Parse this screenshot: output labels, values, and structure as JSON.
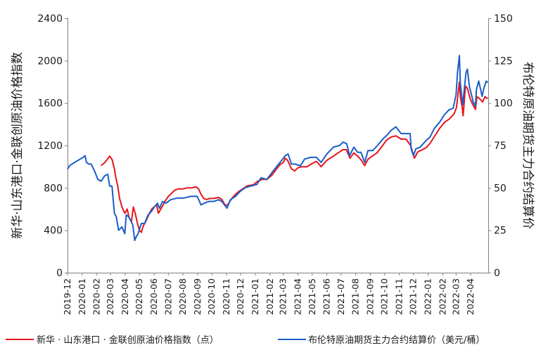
{
  "chart_data": {
    "type": "line",
    "left_axis": {
      "label": "新华·山东港口·金联创原油价格指数",
      "ylim": [
        0,
        2400
      ],
      "ticks": [
        "0",
        "400",
        "800",
        "1200",
        "1600",
        "2000",
        "2400"
      ]
    },
    "right_axis": {
      "label": "布伦特原油期货主力合约结算价",
      "ylim": [
        0,
        150
      ],
      "ticks": [
        "0",
        "25",
        "50",
        "75",
        "100",
        "125",
        "150"
      ]
    },
    "x_ticks": [
      "2019-12",
      "2020-01",
      "2020-02",
      "2020-03",
      "2020-04",
      "2020-05",
      "2020-06",
      "2020-07",
      "2020-08",
      "2020-09",
      "2020-10",
      "2020-11",
      "2020-12",
      "2021-01",
      "2021-02",
      "2021-03",
      "2021-04",
      "2021-05",
      "2021-06",
      "2021-07",
      "2021-08",
      "2021-09",
      "2021-10",
      "2021-11",
      "2021-12",
      "2022-01",
      "2022-02",
      "2022-03",
      "2022-04"
    ],
    "x_range": [
      "2019-12-01",
      "2022-05-08"
    ],
    "legend_position": "bottom",
    "grid": false,
    "series": [
      {
        "name": "新华 · 山东港口 · 金联创原油价格指数（点）",
        "axis": "left",
        "color": "#e8141c",
        "points": [
          [
            "2020-02-10",
            1010
          ],
          [
            "2020-02-18",
            1040
          ],
          [
            "2020-02-25",
            1080
          ],
          [
            "2020-02-28",
            1100
          ],
          [
            "2020-03-04",
            1070
          ],
          [
            "2020-03-09",
            980
          ],
          [
            "2020-03-12",
            900
          ],
          [
            "2020-03-16",
            820
          ],
          [
            "2020-03-20",
            700
          ],
          [
            "2020-03-25",
            620
          ],
          [
            "2020-03-31",
            560
          ],
          [
            "2020-04-05",
            600
          ],
          [
            "2020-04-09",
            520
          ],
          [
            "2020-04-14",
            480
          ],
          [
            "2020-04-18",
            620
          ],
          [
            "2020-04-22",
            560
          ],
          [
            "2020-04-27",
            460
          ],
          [
            "2020-05-01",
            400
          ],
          [
            "2020-05-05",
            380
          ],
          [
            "2020-05-09",
            440
          ],
          [
            "2020-05-14",
            480
          ],
          [
            "2020-05-18",
            520
          ],
          [
            "2020-05-22",
            560
          ],
          [
            "2020-05-27",
            600
          ],
          [
            "2020-06-01",
            620
          ],
          [
            "2020-06-06",
            640
          ],
          [
            "2020-06-10",
            560
          ],
          [
            "2020-06-15",
            600
          ],
          [
            "2020-06-20",
            640
          ],
          [
            "2020-06-25",
            680
          ],
          [
            "2020-07-01",
            720
          ],
          [
            "2020-07-08",
            750
          ],
          [
            "2020-07-15",
            780
          ],
          [
            "2020-07-22",
            790
          ],
          [
            "2020-08-01",
            790
          ],
          [
            "2020-08-10",
            800
          ],
          [
            "2020-08-20",
            800
          ],
          [
            "2020-08-28",
            810
          ],
          [
            "2020-09-03",
            790
          ],
          [
            "2020-09-08",
            740
          ],
          [
            "2020-09-14",
            700
          ],
          [
            "2020-09-20",
            690
          ],
          [
            "2020-09-26",
            700
          ],
          [
            "2020-10-05",
            700
          ],
          [
            "2020-10-15",
            710
          ],
          [
            "2020-10-22",
            690
          ],
          [
            "2020-10-30",
            630
          ],
          [
            "2020-11-05",
            650
          ],
          [
            "2020-11-12",
            700
          ],
          [
            "2020-11-20",
            740
          ],
          [
            "2020-11-28",
            770
          ],
          [
            "2020-12-05",
            790
          ],
          [
            "2020-12-15",
            820
          ],
          [
            "2020-12-28",
            830
          ],
          [
            "2021-01-05",
            860
          ],
          [
            "2021-01-15",
            880
          ],
          [
            "2021-01-25",
            880
          ],
          [
            "2021-02-05",
            920
          ],
          [
            "2021-02-15",
            980
          ],
          [
            "2021-02-22",
            1020
          ],
          [
            "2021-03-01",
            1040
          ],
          [
            "2021-03-05",
            1080
          ],
          [
            "2021-03-10",
            1060
          ],
          [
            "2021-03-18",
            980
          ],
          [
            "2021-03-25",
            960
          ],
          [
            "2021-04-01",
            990
          ],
          [
            "2021-04-10",
            1000
          ],
          [
            "2021-04-20",
            1000
          ],
          [
            "2021-05-01",
            1030
          ],
          [
            "2021-05-10",
            1050
          ],
          [
            "2021-05-20",
            1000
          ],
          [
            "2021-06-01",
            1060
          ],
          [
            "2021-06-15",
            1100
          ],
          [
            "2021-06-28",
            1140
          ],
          [
            "2021-07-05",
            1160
          ],
          [
            "2021-07-12",
            1160
          ],
          [
            "2021-07-20",
            1080
          ],
          [
            "2021-07-28",
            1130
          ],
          [
            "2021-08-05",
            1100
          ],
          [
            "2021-08-13",
            1060
          ],
          [
            "2021-08-20",
            1010
          ],
          [
            "2021-08-27",
            1070
          ],
          [
            "2021-09-05",
            1100
          ],
          [
            "2021-09-15",
            1130
          ],
          [
            "2021-09-25",
            1190
          ],
          [
            "2021-10-05",
            1250
          ],
          [
            "2021-10-15",
            1280
          ],
          [
            "2021-10-25",
            1290
          ],
          [
            "2021-11-05",
            1260
          ],
          [
            "2021-11-15",
            1260
          ],
          [
            "2021-11-25",
            1200
          ],
          [
            "2021-11-29",
            1140
          ],
          [
            "2021-12-03",
            1080
          ],
          [
            "2021-12-10",
            1140
          ],
          [
            "2021-12-20",
            1160
          ],
          [
            "2021-12-28",
            1180
          ],
          [
            "2022-01-05",
            1220
          ],
          [
            "2022-01-15",
            1290
          ],
          [
            "2022-01-25",
            1360
          ],
          [
            "2022-02-05",
            1420
          ],
          [
            "2022-02-15",
            1450
          ],
          [
            "2022-02-25",
            1500
          ],
          [
            "2022-03-02",
            1560
          ],
          [
            "2022-03-06",
            1720
          ],
          [
            "2022-03-08",
            1800
          ],
          [
            "2022-03-10",
            1660
          ],
          [
            "2022-03-14",
            1560
          ],
          [
            "2022-03-16",
            1480
          ],
          [
            "2022-03-21",
            1760
          ],
          [
            "2022-03-25",
            1740
          ],
          [
            "2022-03-31",
            1640
          ],
          [
            "2022-04-06",
            1580
          ],
          [
            "2022-04-11",
            1540
          ],
          [
            "2022-04-14",
            1660
          ],
          [
            "2022-04-20",
            1640
          ],
          [
            "2022-04-26",
            1610
          ],
          [
            "2022-05-01",
            1660
          ],
          [
            "2022-05-07",
            1640
          ]
        ]
      },
      {
        "name": "布伦特原油期货主力合约结算价（美元/桶）",
        "axis": "right",
        "color": "#1a5ec7",
        "points": [
          [
            "2019-12-01",
            61
          ],
          [
            "2019-12-05",
            63
          ],
          [
            "2019-12-10",
            64
          ],
          [
            "2019-12-16",
            65
          ],
          [
            "2019-12-22",
            66
          ],
          [
            "2019-12-28",
            67
          ],
          [
            "2020-01-03",
            68
          ],
          [
            "2020-01-07",
            69
          ],
          [
            "2020-01-10",
            65
          ],
          [
            "2020-01-15",
            64
          ],
          [
            "2020-01-20",
            64
          ],
          [
            "2020-01-27",
            60
          ],
          [
            "2020-02-03",
            55
          ],
          [
            "2020-02-10",
            54
          ],
          [
            "2020-02-17",
            57
          ],
          [
            "2020-02-24",
            58
          ],
          [
            "2020-02-28",
            51
          ],
          [
            "2020-03-04",
            51
          ],
          [
            "2020-03-09",
            35
          ],
          [
            "2020-03-13",
            33
          ],
          [
            "2020-03-18",
            25
          ],
          [
            "2020-03-25",
            27
          ],
          [
            "2020-03-31",
            23
          ],
          [
            "2020-04-03",
            34
          ],
          [
            "2020-04-08",
            33
          ],
          [
            "2020-04-14",
            30
          ],
          [
            "2020-04-17",
            28
          ],
          [
            "2020-04-21",
            19
          ],
          [
            "2020-04-24",
            21
          ],
          [
            "2020-04-28",
            23
          ],
          [
            "2020-05-05",
            29
          ],
          [
            "2020-05-12",
            29
          ],
          [
            "2020-05-19",
            34
          ],
          [
            "2020-05-26",
            36
          ],
          [
            "2020-06-02",
            39
          ],
          [
            "2020-06-08",
            41
          ],
          [
            "2020-06-12",
            38
          ],
          [
            "2020-06-19",
            42
          ],
          [
            "2020-06-26",
            41
          ],
          [
            "2020-07-06",
            43
          ],
          [
            "2020-07-20",
            44
          ],
          [
            "2020-08-03",
            44
          ],
          [
            "2020-08-17",
            45
          ],
          [
            "2020-08-31",
            45
          ],
          [
            "2020-09-08",
            40
          ],
          [
            "2020-09-15",
            41
          ],
          [
            "2020-09-25",
            42
          ],
          [
            "2020-10-05",
            42
          ],
          [
            "2020-10-15",
            43
          ],
          [
            "2020-10-22",
            42
          ],
          [
            "2020-11-02",
            38
          ],
          [
            "2020-11-09",
            43
          ],
          [
            "2020-11-20",
            45
          ],
          [
            "2020-11-30",
            48
          ],
          [
            "2020-12-10",
            50
          ],
          [
            "2020-12-21",
            51
          ],
          [
            "2021-01-04",
            52
          ],
          [
            "2021-01-13",
            56
          ],
          [
            "2021-01-25",
            55
          ],
          [
            "2021-02-05",
            59
          ],
          [
            "2021-02-16",
            63
          ],
          [
            "2021-02-25",
            66
          ],
          [
            "2021-03-05",
            69
          ],
          [
            "2021-03-11",
            70
          ],
          [
            "2021-03-18",
            64
          ],
          [
            "2021-03-26",
            64
          ],
          [
            "2021-04-06",
            63
          ],
          [
            "2021-04-15",
            67
          ],
          [
            "2021-04-28",
            68
          ],
          [
            "2021-05-10",
            68
          ],
          [
            "2021-05-20",
            65
          ],
          [
            "2021-06-01",
            70
          ],
          [
            "2021-06-15",
            74
          ],
          [
            "2021-06-28",
            75
          ],
          [
            "2021-07-05",
            77
          ],
          [
            "2021-07-13",
            76
          ],
          [
            "2021-07-19",
            69
          ],
          [
            "2021-07-28",
            74
          ],
          [
            "2021-08-05",
            71
          ],
          [
            "2021-08-12",
            71
          ],
          [
            "2021-08-20",
            65
          ],
          [
            "2021-08-27",
            72
          ],
          [
            "2021-09-06",
            72
          ],
          [
            "2021-09-16",
            75
          ],
          [
            "2021-09-28",
            79
          ],
          [
            "2021-10-06",
            81
          ],
          [
            "2021-10-15",
            84
          ],
          [
            "2021-10-25",
            86
          ],
          [
            "2021-11-05",
            82
          ],
          [
            "2021-11-15",
            82
          ],
          [
            "2021-11-24",
            82
          ],
          [
            "2021-11-26",
            73
          ],
          [
            "2021-12-01",
            69
          ],
          [
            "2021-12-06",
            73
          ],
          [
            "2021-12-15",
            74
          ],
          [
            "2021-12-28",
            78
          ],
          [
            "2022-01-05",
            80
          ],
          [
            "2022-01-14",
            85
          ],
          [
            "2022-01-26",
            89
          ],
          [
            "2022-02-04",
            93
          ],
          [
            "2022-02-14",
            96
          ],
          [
            "2022-02-23",
            97
          ],
          [
            "2022-03-01",
            105
          ],
          [
            "2022-03-04",
            118
          ],
          [
            "2022-03-08",
            128
          ],
          [
            "2022-03-10",
            112
          ],
          [
            "2022-03-15",
            99
          ],
          [
            "2022-03-22",
            118
          ],
          [
            "2022-03-25",
            120
          ],
          [
            "2022-03-29",
            110
          ],
          [
            "2022-04-06",
            101
          ],
          [
            "2022-04-11",
            98
          ],
          [
            "2022-04-13",
            108
          ],
          [
            "2022-04-18",
            113
          ],
          [
            "2022-04-25",
            104
          ],
          [
            "2022-04-29",
            109
          ],
          [
            "2022-05-04",
            113
          ],
          [
            "2022-05-07",
            112
          ]
        ]
      }
    ]
  }
}
